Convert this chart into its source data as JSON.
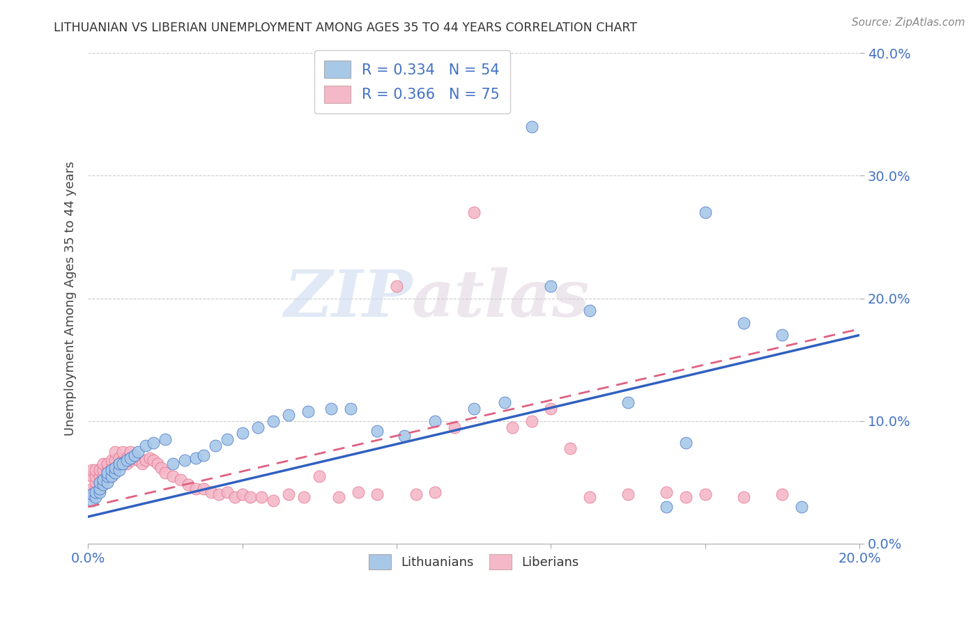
{
  "title": "LITHUANIAN VS LIBERIAN UNEMPLOYMENT AMONG AGES 35 TO 44 YEARS CORRELATION CHART",
  "source": "Source: ZipAtlas.com",
  "ylabel": "Unemployment Among Ages 35 to 44 years",
  "legend_label1": "Lithuanians",
  "legend_label2": "Liberians",
  "R1": 0.334,
  "N1": 54,
  "R2": 0.366,
  "N2": 75,
  "blue_color": "#a8c8e8",
  "pink_color": "#f4b8c8",
  "blue_line_color": "#3060c0",
  "pink_line_color": "#e06080",
  "watermark_zip": "ZIP",
  "watermark_atlas": "atlas",
  "background_color": "#ffffff",
  "grid_color": "#cccccc",
  "xlim": [
    0.0,
    0.2
  ],
  "ylim": [
    0.0,
    0.4
  ],
  "x_tick_positions": [
    0.0,
    0.04,
    0.08,
    0.12,
    0.16,
    0.2
  ],
  "y_tick_positions": [
    0.0,
    0.1,
    0.2,
    0.3,
    0.4
  ],
  "blue_x": [
    0.001,
    0.001,
    0.002,
    0.002,
    0.003,
    0.003,
    0.003,
    0.004,
    0.004,
    0.005,
    0.005,
    0.005,
    0.006,
    0.006,
    0.007,
    0.007,
    0.008,
    0.008,
    0.009,
    0.01,
    0.011,
    0.012,
    0.013,
    0.015,
    0.017,
    0.02,
    0.022,
    0.025,
    0.028,
    0.03,
    0.033,
    0.036,
    0.04,
    0.044,
    0.048,
    0.052,
    0.057,
    0.063,
    0.068,
    0.075,
    0.082,
    0.09,
    0.1,
    0.108,
    0.115,
    0.12,
    0.13,
    0.14,
    0.15,
    0.155,
    0.16,
    0.17,
    0.18,
    0.185
  ],
  "blue_y": [
    0.035,
    0.04,
    0.038,
    0.042,
    0.042,
    0.045,
    0.05,
    0.048,
    0.052,
    0.05,
    0.055,
    0.058,
    0.055,
    0.06,
    0.058,
    0.062,
    0.06,
    0.065,
    0.065,
    0.068,
    0.07,
    0.072,
    0.075,
    0.08,
    0.082,
    0.085,
    0.065,
    0.068,
    0.07,
    0.072,
    0.08,
    0.085,
    0.09,
    0.095,
    0.1,
    0.105,
    0.108,
    0.11,
    0.11,
    0.092,
    0.088,
    0.1,
    0.11,
    0.115,
    0.34,
    0.21,
    0.19,
    0.115,
    0.03,
    0.082,
    0.27,
    0.18,
    0.17,
    0.03
  ],
  "pink_x": [
    0.001,
    0.001,
    0.001,
    0.001,
    0.002,
    0.002,
    0.002,
    0.002,
    0.003,
    0.003,
    0.003,
    0.004,
    0.004,
    0.004,
    0.005,
    0.005,
    0.005,
    0.006,
    0.006,
    0.006,
    0.007,
    0.007,
    0.007,
    0.008,
    0.008,
    0.009,
    0.009,
    0.01,
    0.01,
    0.011,
    0.011,
    0.012,
    0.013,
    0.014,
    0.015,
    0.016,
    0.017,
    0.018,
    0.019,
    0.02,
    0.022,
    0.024,
    0.026,
    0.028,
    0.03,
    0.032,
    0.034,
    0.036,
    0.038,
    0.04,
    0.042,
    0.045,
    0.048,
    0.052,
    0.056,
    0.06,
    0.065,
    0.07,
    0.075,
    0.08,
    0.085,
    0.09,
    0.095,
    0.1,
    0.11,
    0.115,
    0.12,
    0.125,
    0.13,
    0.14,
    0.15,
    0.155,
    0.16,
    0.17,
    0.18
  ],
  "pink_y": [
    0.04,
    0.045,
    0.055,
    0.06,
    0.045,
    0.05,
    0.055,
    0.06,
    0.045,
    0.055,
    0.06,
    0.055,
    0.06,
    0.065,
    0.055,
    0.06,
    0.065,
    0.055,
    0.062,
    0.068,
    0.062,
    0.068,
    0.075,
    0.065,
    0.07,
    0.068,
    0.075,
    0.065,
    0.07,
    0.068,
    0.075,
    0.07,
    0.068,
    0.065,
    0.068,
    0.07,
    0.068,
    0.065,
    0.062,
    0.058,
    0.055,
    0.052,
    0.048,
    0.045,
    0.045,
    0.042,
    0.04,
    0.042,
    0.038,
    0.04,
    0.038,
    0.038,
    0.035,
    0.04,
    0.038,
    0.055,
    0.038,
    0.042,
    0.04,
    0.21,
    0.04,
    0.042,
    0.095,
    0.27,
    0.095,
    0.1,
    0.11,
    0.078,
    0.038,
    0.04,
    0.042,
    0.038,
    0.04,
    0.038,
    0.04
  ],
  "blue_line_x0": 0.0,
  "blue_line_y0": 0.022,
  "blue_line_x1": 0.2,
  "blue_line_y1": 0.17,
  "pink_line_x0": 0.0,
  "pink_line_y0": 0.03,
  "pink_line_x1": 0.2,
  "pink_line_y1": 0.175
}
